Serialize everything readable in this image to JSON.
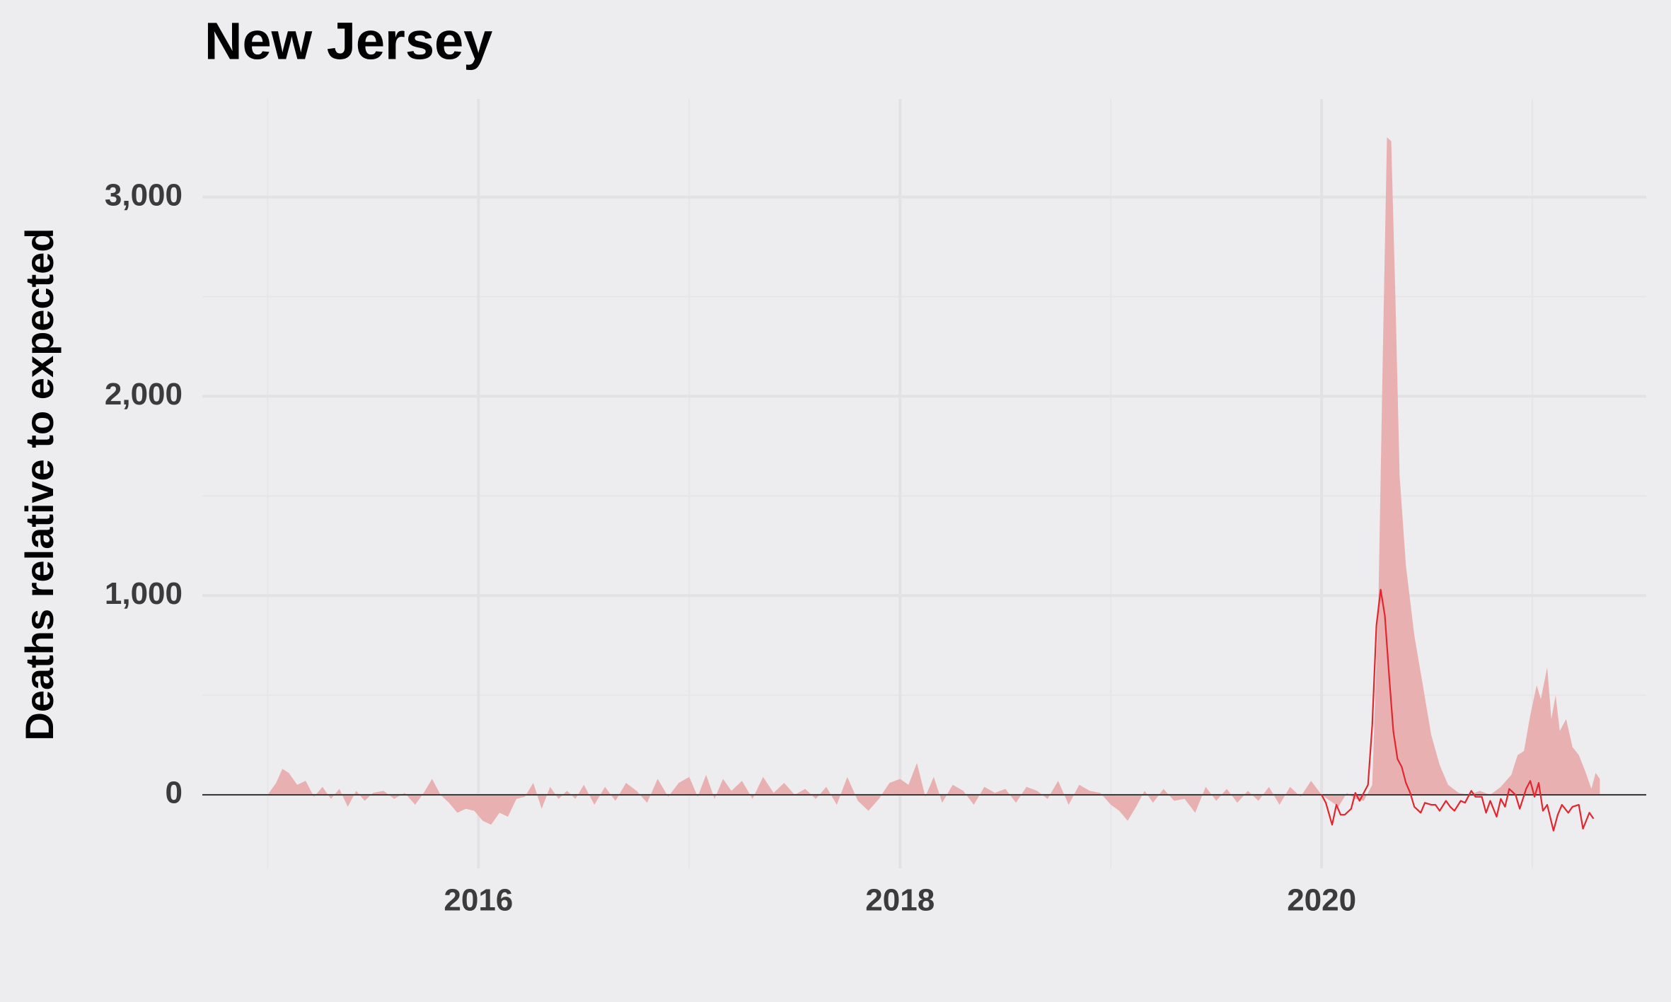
{
  "chart_data": {
    "type": "area",
    "title": "New Jersey",
    "y_label": "Deaths relative to expected",
    "xlim": [
      2014.69,
      2021.54
    ],
    "ylim": [
      -369,
      3492
    ],
    "xticks": [
      2016,
      2018,
      2020
    ],
    "xminorticks": [
      2015,
      2017,
      2019,
      2021
    ],
    "yticks": [
      0,
      {
        "value": 1000,
        "label": "1,000"
      },
      {
        "value": 2000,
        "label": "2,000"
      },
      {
        "value": 3000,
        "label": "3,000"
      }
    ],
    "yminorticks": [
      500,
      1500,
      2500
    ],
    "grid": true,
    "series": [
      {
        "type": "area",
        "color": "#e9b0b2",
        "x": [
          2015.0,
          2015.04,
          2015.07,
          2015.1,
          2015.14,
          2015.18,
          2015.22,
          2015.26,
          2015.3,
          2015.34,
          2015.38,
          2015.42,
          2015.46,
          2015.5,
          2015.55,
          2015.6,
          2015.65,
          2015.7,
          2015.74,
          2015.78,
          2015.82,
          2015.86,
          2015.9,
          2015.94,
          2015.98,
          2016.02,
          2016.06,
          2016.1,
          2016.14,
          2016.18,
          2016.22,
          2016.26,
          2016.3,
          2016.34,
          2016.38,
          2016.42,
          2016.46,
          2016.5,
          2016.55,
          2016.6,
          2016.65,
          2016.7,
          2016.75,
          2016.8,
          2016.85,
          2016.9,
          2016.95,
          2017.0,
          2017.04,
          2017.08,
          2017.12,
          2017.16,
          2017.2,
          2017.25,
          2017.3,
          2017.35,
          2017.4,
          2017.45,
          2017.5,
          2017.55,
          2017.6,
          2017.65,
          2017.7,
          2017.75,
          2017.8,
          2017.85,
          2017.9,
          2017.95,
          2018.0,
          2018.04,
          2018.08,
          2018.12,
          2018.16,
          2018.2,
          2018.25,
          2018.3,
          2018.35,
          2018.4,
          2018.45,
          2018.5,
          2018.55,
          2018.6,
          2018.65,
          2018.7,
          2018.75,
          2018.8,
          2018.85,
          2018.9,
          2018.95,
          2019.0,
          2019.04,
          2019.08,
          2019.12,
          2019.16,
          2019.2,
          2019.25,
          2019.3,
          2019.35,
          2019.4,
          2019.45,
          2019.5,
          2019.55,
          2019.6,
          2019.65,
          2019.7,
          2019.75,
          2019.8,
          2019.85,
          2019.9,
          2019.95,
          2020.0,
          2020.04,
          2020.08,
          2020.12,
          2020.16,
          2020.2,
          2020.24,
          2020.27,
          2020.29,
          2020.31,
          2020.33,
          2020.35,
          2020.37,
          2020.4,
          2020.44,
          2020.48,
          2020.52,
          2020.56,
          2020.6,
          2020.65,
          2020.7,
          2020.75,
          2020.8,
          2020.85,
          2020.9,
          2020.93,
          2020.96,
          2020.99,
          2021.02,
          2021.04,
          2021.07,
          2021.09,
          2021.11,
          2021.13,
          2021.16,
          2021.19,
          2021.22,
          2021.25,
          2021.28,
          2021.3,
          2021.32
        ],
        "values": [
          0,
          60,
          130,
          110,
          50,
          70,
          -10,
          40,
          -20,
          30,
          -60,
          20,
          -30,
          10,
          20,
          -20,
          10,
          -50,
          10,
          80,
          0,
          -40,
          -90,
          -70,
          -80,
          -130,
          -150,
          -90,
          -110,
          -20,
          -10,
          60,
          -70,
          40,
          -20,
          20,
          -20,
          50,
          -50,
          40,
          -30,
          60,
          20,
          -40,
          80,
          -10,
          60,
          90,
          -10,
          100,
          -20,
          80,
          20,
          70,
          -20,
          90,
          10,
          60,
          0,
          30,
          -20,
          40,
          -50,
          90,
          -30,
          -80,
          -20,
          60,
          80,
          50,
          160,
          -10,
          90,
          -40,
          50,
          20,
          -50,
          40,
          10,
          30,
          -40,
          40,
          20,
          -20,
          70,
          -50,
          50,
          20,
          10,
          -50,
          -80,
          -130,
          -60,
          20,
          -40,
          30,
          -30,
          -20,
          -90,
          40,
          -30,
          30,
          -40,
          20,
          -30,
          40,
          -50,
          40,
          -10,
          70,
          0,
          -30,
          -60,
          10,
          -20,
          -30,
          50,
          1000,
          2200,
          3300,
          3280,
          2500,
          1600,
          1150,
          800,
          550,
          300,
          150,
          50,
          10,
          0,
          20,
          0,
          40,
          100,
          200,
          220,
          400,
          550,
          480,
          640,
          380,
          500,
          320,
          380,
          240,
          200,
          120,
          30,
          110,
          80
        ]
      },
      {
        "type": "line",
        "color": "#e3262d",
        "x": [
          2020.0,
          2020.02,
          2020.05,
          2020.07,
          2020.09,
          2020.11,
          2020.14,
          2020.16,
          2020.18,
          2020.22,
          2020.24,
          2020.26,
          2020.28,
          2020.3,
          2020.32,
          2020.34,
          2020.36,
          2020.38,
          2020.4,
          2020.42,
          2020.44,
          2020.47,
          2020.49,
          2020.52,
          2020.54,
          2020.56,
          2020.59,
          2020.61,
          2020.63,
          2020.66,
          2020.68,
          2020.71,
          2020.73,
          2020.76,
          2020.78,
          2020.8,
          2020.83,
          2020.85,
          2020.87,
          2020.89,
          2020.92,
          2020.94,
          2020.97,
          2020.99,
          2021.01,
          2021.03,
          2021.05,
          2021.07,
          2021.1,
          2021.12,
          2021.14,
          2021.17,
          2021.19,
          2021.22,
          2021.24,
          2021.27,
          2021.29
        ],
        "values": [
          0,
          -40,
          -150,
          -50,
          -100,
          -100,
          -70,
          10,
          -30,
          50,
          350,
          850,
          1030,
          900,
          600,
          320,
          180,
          140,
          60,
          10,
          -60,
          -90,
          -40,
          -50,
          -50,
          -80,
          -30,
          -60,
          -80,
          -30,
          -40,
          20,
          -10,
          -10,
          -90,
          -30,
          -110,
          -20,
          -60,
          30,
          0,
          -70,
          30,
          70,
          -10,
          60,
          -80,
          -50,
          -180,
          -100,
          -50,
          -90,
          -60,
          -50,
          -170,
          -90,
          -120
        ]
      }
    ]
  }
}
